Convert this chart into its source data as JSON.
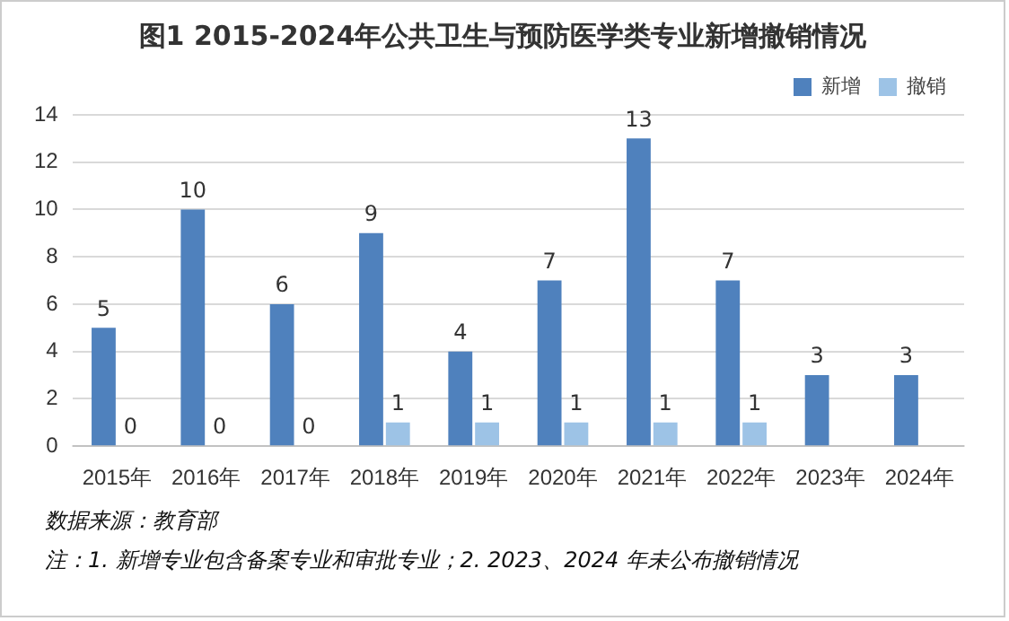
{
  "chart_data": {
    "type": "bar",
    "title": "图1 2015-2024年公共卫生与预防医学类专业新增撤销情况",
    "categories": [
      "2015年",
      "2016年",
      "2017年",
      "2018年",
      "2019年",
      "2020年",
      "2021年",
      "2022年",
      "2023年",
      "2024年"
    ],
    "series": [
      {
        "name": "新增",
        "color": "#4f81bd",
        "values": [
          5,
          10,
          6,
          9,
          4,
          7,
          13,
          7,
          3,
          3
        ]
      },
      {
        "name": "撤销",
        "color": "#9dc3e6",
        "values": [
          0,
          0,
          0,
          1,
          1,
          1,
          1,
          1,
          null,
          null
        ]
      }
    ],
    "ylim": [
      0,
      14
    ],
    "yticks": [
      0,
      2,
      4,
      6,
      8,
      10,
      12,
      14
    ],
    "grid": "y",
    "legend": "top right",
    "data_labels": true,
    "annotations": [
      "数据来源：教育部",
      "注：1. 新增专业包含备案专业和审批专业；2. 2023、2024 年未公布撤销情况"
    ]
  }
}
